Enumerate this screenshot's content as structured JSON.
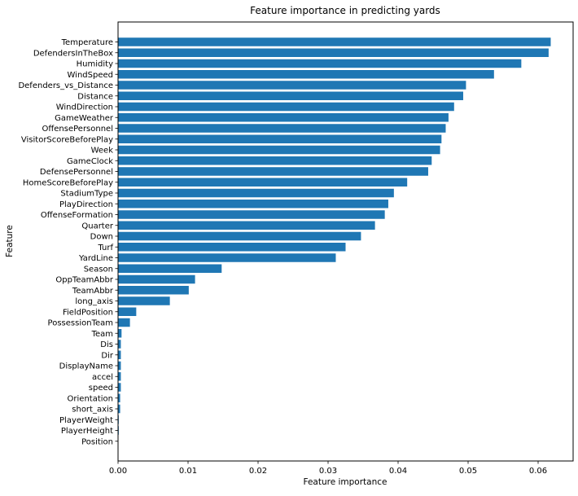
{
  "chart_data": {
    "type": "bar",
    "orientation": "horizontal",
    "title": "Feature importance in predicting yards",
    "xlabel": "Feature importance",
    "ylabel": "Feature",
    "xlim": [
      0,
      0.065
    ],
    "xticks": [
      0.0,
      0.01,
      0.02,
      0.03,
      0.04,
      0.05,
      0.06
    ],
    "xtick_labels": [
      "0.00",
      "0.01",
      "0.02",
      "0.03",
      "0.04",
      "0.05",
      "0.06"
    ],
    "grid": false,
    "bar_color": "#1f77b4",
    "categories": [
      "Temperature",
      "DefendersInTheBox",
      "Humidity",
      "WindSpeed",
      "Defenders_vs_Distance",
      "Distance",
      "WindDirection",
      "GameWeather",
      "OffensePersonnel",
      "VisitorScoreBeforePlay",
      "Week",
      "GameClock",
      "DefensePersonnel",
      "HomeScoreBeforePlay",
      "StadiumType",
      "PlayDirection",
      "OffenseFormation",
      "Quarter",
      "Down",
      "Turf",
      "YardLine",
      "Season",
      "OppTeamAbbr",
      "TeamAbbr",
      "long_axis",
      "FieldPosition",
      "PossessionTeam",
      "Team",
      "Dis",
      "Dir",
      "DisplayName",
      "accel",
      "speed",
      "Orientation",
      "short_axis",
      "PlayerWeight",
      "PlayerHeight",
      "Position"
    ],
    "values": [
      0.0618,
      0.0615,
      0.0576,
      0.0537,
      0.0497,
      0.0493,
      0.048,
      0.0472,
      0.0468,
      0.0462,
      0.046,
      0.0448,
      0.0443,
      0.0413,
      0.0394,
      0.0386,
      0.0381,
      0.0367,
      0.0347,
      0.0325,
      0.0311,
      0.0148,
      0.011,
      0.0101,
      0.0074,
      0.0026,
      0.0017,
      0.0005,
      0.0004,
      0.0004,
      0.0004,
      0.0004,
      0.0004,
      0.0003,
      0.0003,
      0.0001,
      0.0001,
      0.0
    ]
  }
}
